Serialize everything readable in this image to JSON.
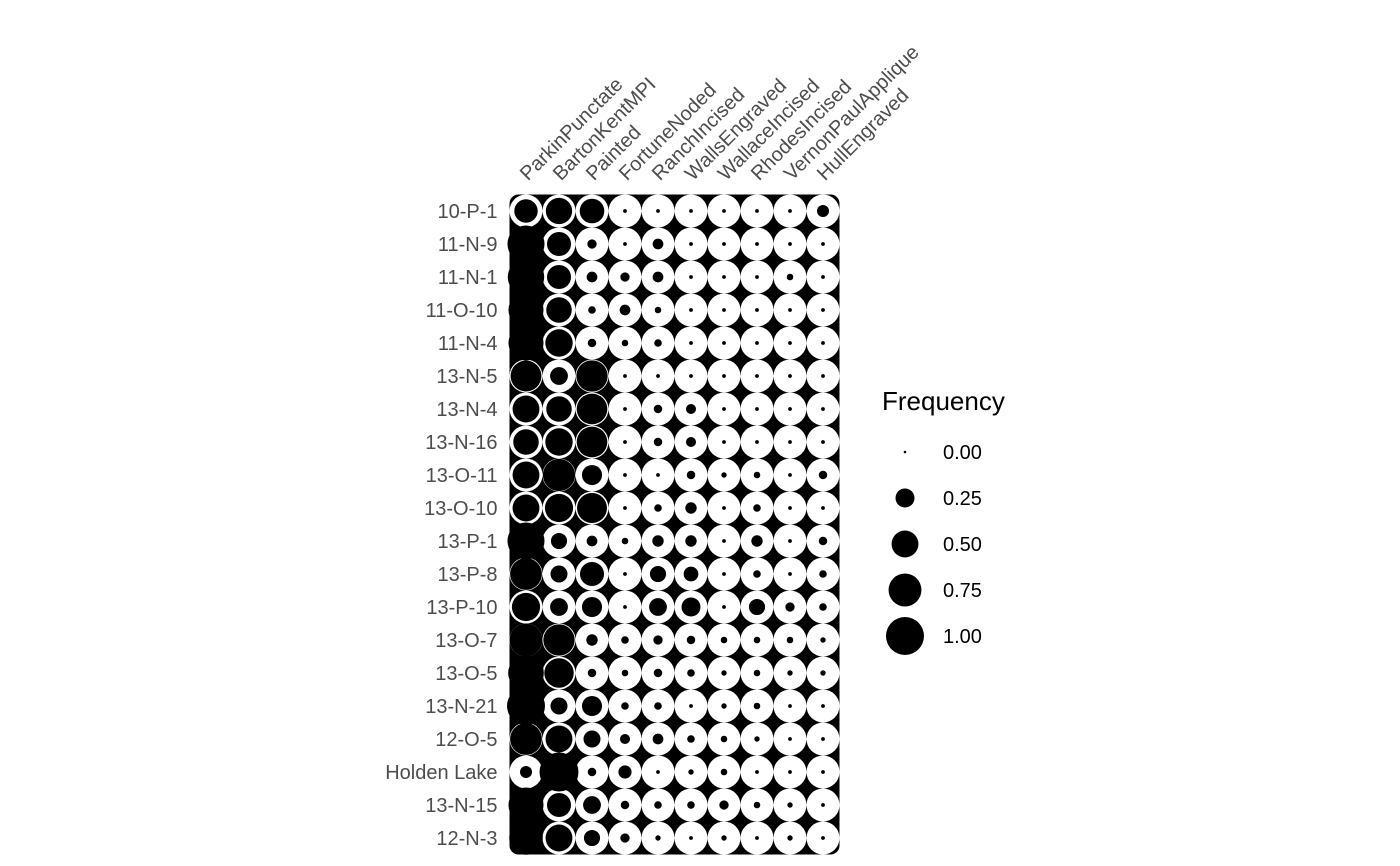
{
  "chart_data": {
    "type": "scatter",
    "subtype": "bubble-matrix",
    "title": "",
    "xlabel": "",
    "ylabel": "",
    "grid": false,
    "legend_position": "right",
    "columns": [
      "ParkinPunctate",
      "BartonKentMPI",
      "Painted",
      "FortuneNoded",
      "RanchIncised",
      "WallsEngraved",
      "WallaceIncised",
      "RhodesIncised",
      "VernonPaulApplique",
      "HullEngraved"
    ],
    "rows": [
      "10-P-1",
      "11-N-9",
      "11-N-1",
      "11-O-10",
      "11-N-4",
      "13-N-5",
      "13-N-4",
      "13-N-16",
      "13-O-11",
      "13-O-10",
      "13-P-1",
      "13-P-8",
      "13-P-10",
      "13-O-7",
      "13-O-5",
      "13-N-21",
      "12-O-5",
      "Holden Lake",
      "13-N-15",
      "12-N-3"
    ],
    "values": [
      [
        0.38,
        0.48,
        0.42,
        0.01,
        0.01,
        0.01,
        0.01,
        0.01,
        0.01,
        0.1
      ],
      [
        0.95,
        0.4,
        0.06,
        0.01,
        0.08,
        0.01,
        0.01,
        0.01,
        0.01,
        0.01
      ],
      [
        0.92,
        0.4,
        0.08,
        0.06,
        0.08,
        0.01,
        0.01,
        0.01,
        0.03,
        0.01
      ],
      [
        0.85,
        0.45,
        0.04,
        0.08,
        0.03,
        0.01,
        0.01,
        0.01,
        0.01,
        0.01
      ],
      [
        0.85,
        0.52,
        0.05,
        0.03,
        0.04,
        0.01,
        0.01,
        0.01,
        0.01,
        0.01
      ],
      [
        0.66,
        0.22,
        0.68,
        0.01,
        0.01,
        0.01,
        0.01,
        0.01,
        0.01,
        0.01
      ],
      [
        0.5,
        0.45,
        0.65,
        0.01,
        0.05,
        0.07,
        0.01,
        0.01,
        0.01,
        0.01
      ],
      [
        0.45,
        0.52,
        0.65,
        0.01,
        0.05,
        0.07,
        0.01,
        0.01,
        0.01,
        0.01
      ],
      [
        0.5,
        0.72,
        0.28,
        0.01,
        0.01,
        0.05,
        0.02,
        0.03,
        0.01,
        0.05
      ],
      [
        0.5,
        0.55,
        0.62,
        0.01,
        0.04,
        0.09,
        0.01,
        0.04,
        0.01,
        0.01
      ],
      [
        0.95,
        0.18,
        0.08,
        0.03,
        0.09,
        0.09,
        0.01,
        0.09,
        0.01,
        0.05
      ],
      [
        0.7,
        0.2,
        0.4,
        0.01,
        0.18,
        0.15,
        0.01,
        0.04,
        0.01,
        0.04
      ],
      [
        0.55,
        0.22,
        0.28,
        0.01,
        0.22,
        0.25,
        0.01,
        0.18,
        0.06,
        0.04
      ],
      [
        0.75,
        0.68,
        0.09,
        0.04,
        0.06,
        0.05,
        0.03,
        0.03,
        0.03,
        0.02
      ],
      [
        0.88,
        0.6,
        0.05,
        0.03,
        0.05,
        0.04,
        0.02,
        0.03,
        0.02,
        0.02
      ],
      [
        1.0,
        0.2,
        0.28,
        0.04,
        0.04,
        0.01,
        0.02,
        0.03,
        0.01,
        0.01
      ],
      [
        0.7,
        0.5,
        0.2,
        0.07,
        0.08,
        0.04,
        0.03,
        0.02,
        0.01,
        0.01
      ],
      [
        0.1,
        1.05,
        0.05,
        0.12,
        0.01,
        0.02,
        0.03,
        0.01,
        0.01,
        0.01
      ],
      [
        0.85,
        0.4,
        0.22,
        0.05,
        0.04,
        0.04,
        0.06,
        0.03,
        0.02,
        0.01
      ],
      [
        0.78,
        0.5,
        0.18,
        0.06,
        0.02,
        0.01,
        0.02,
        0.01,
        0.02,
        0.01
      ]
    ],
    "legend": {
      "title": "Frequency",
      "breaks": [
        0.0,
        0.25,
        0.5,
        0.75,
        1.0
      ],
      "labels": [
        "0.00",
        "0.25",
        "0.50",
        "0.75",
        "1.00"
      ]
    },
    "colors": {
      "point": "#000000",
      "cell": "#ffffff",
      "tick_text": "#4d4d4d"
    }
  }
}
